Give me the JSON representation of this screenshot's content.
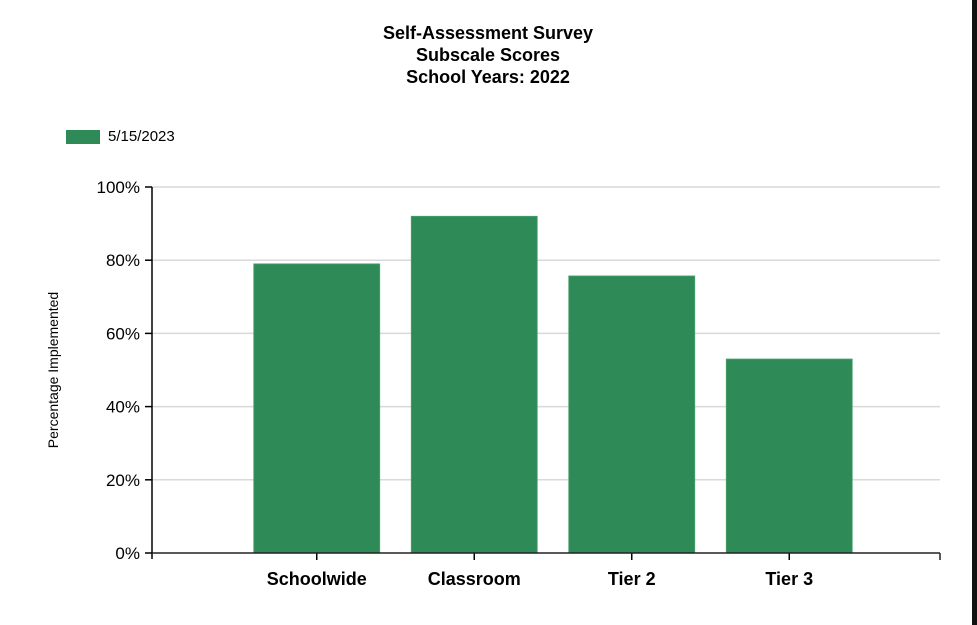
{
  "chart_data": {
    "type": "bar",
    "title": "Self-Assessment Survey\nSubscale Scores\nSchool Years: 2022",
    "title_lines": [
      "Self-Assessment Survey",
      "Subscale Scores",
      "School Years: 2022"
    ],
    "xlabel": "",
    "ylabel": "Percentage Implemented",
    "categories": [
      "Schoolwide",
      "Classroom",
      "Tier 2",
      "Tier 3"
    ],
    "series": [
      {
        "name": "5/15/2023",
        "color": "#2e8b57",
        "values": [
          79,
          92,
          75.7,
          53
        ]
      }
    ],
    "ylim": [
      0,
      100
    ],
    "yticks": [
      0,
      20,
      40,
      60,
      80,
      100
    ],
    "ytick_labels": [
      "0%",
      "20%",
      "40%",
      "60%",
      "80%",
      "100%"
    ],
    "grid": true,
    "legend_position": "top-left"
  },
  "legend": {
    "items": [
      {
        "label": "5/15/2023",
        "color": "#2e8b57"
      }
    ]
  }
}
